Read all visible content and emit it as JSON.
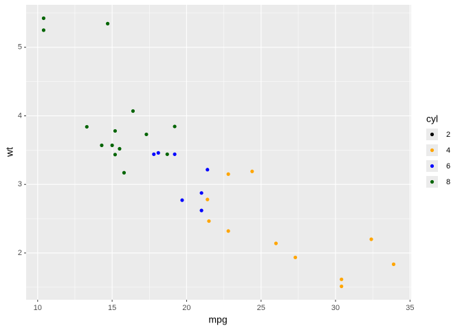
{
  "chart_data": {
    "type": "scatter",
    "x_label": "mpg",
    "y_label": "wt",
    "legend_title": "cyl",
    "xlim": [
      9.225,
      35.075
    ],
    "ylim": [
      1.3175,
      5.6196
    ],
    "xticks": [
      10,
      15,
      20,
      25,
      30,
      35
    ],
    "yticks": [
      2,
      3,
      4,
      5
    ],
    "grid": true,
    "legend_position": "right",
    "series": [
      {
        "name": "2",
        "color": "#000000",
        "x": [],
        "y": []
      },
      {
        "name": "4",
        "color": "#ffa500",
        "x": [
          22.8,
          24.4,
          22.8,
          32.4,
          30.4,
          33.9,
          21.5,
          27.3,
          26.0,
          30.4,
          21.4
        ],
        "y": [
          2.32,
          3.19,
          3.15,
          2.2,
          1.615,
          1.835,
          2.465,
          1.935,
          2.14,
          1.513,
          2.78
        ]
      },
      {
        "name": "6",
        "color": "#0000ff",
        "x": [
          21.0,
          21.0,
          21.4,
          18.1,
          19.2,
          17.8,
          19.7
        ],
        "y": [
          2.62,
          2.875,
          3.215,
          3.46,
          3.44,
          3.44,
          2.77
        ]
      },
      {
        "name": "8",
        "color": "#006400",
        "x": [
          18.7,
          14.3,
          16.4,
          17.3,
          15.2,
          10.4,
          10.4,
          14.7,
          15.5,
          15.2,
          13.3,
          19.2,
          15.8,
          15.0
        ],
        "y": [
          3.44,
          3.57,
          4.07,
          3.73,
          3.78,
          5.25,
          5.424,
          5.345,
          3.52,
          3.435,
          3.84,
          3.845,
          3.17,
          3.57
        ]
      }
    ]
  }
}
